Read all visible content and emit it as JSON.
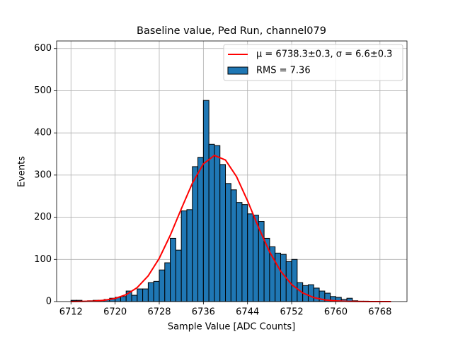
{
  "chart_data": {
    "type": "histogram",
    "title": "Baseline value, Ped Run, channel079",
    "xlabel": "Sample Value [ADC Counts]",
    "ylabel": "Events",
    "name": "RMS = 7.36",
    "color": "#1f77b4",
    "edgecolor": "#000000",
    "bins": [
      6712,
      6713,
      6714,
      6715,
      6716,
      6717,
      6718,
      6719,
      6720,
      6721,
      6722,
      6723,
      6724,
      6725,
      6726,
      6727,
      6728,
      6729,
      6730,
      6731,
      6732,
      6733,
      6734,
      6735,
      6736,
      6737,
      6738,
      6739,
      6740,
      6741,
      6742,
      6743,
      6744,
      6745,
      6746,
      6747,
      6748,
      6749,
      6750,
      6751,
      6752,
      6753,
      6754,
      6755,
      6756,
      6757,
      6758,
      6759,
      6760,
      6761,
      6762,
      6763,
      6764,
      6765,
      6766
    ],
    "counts": [
      3,
      3,
      1,
      2,
      3,
      3,
      5,
      8,
      10,
      12,
      25,
      15,
      30,
      30,
      45,
      48,
      75,
      92,
      150,
      122,
      215,
      218,
      320,
      342,
      477,
      373,
      370,
      325,
      280,
      265,
      235,
      230,
      208,
      205,
      190,
      150,
      130,
      115,
      112,
      95,
      100,
      45,
      38,
      40,
      32,
      25,
      20,
      12,
      10,
      5,
      8,
      2,
      1,
      1
    ],
    "fit": {
      "type": "line",
      "name": "μ = 6738.3±0.3, σ = 6.6±0.3",
      "color": "#ff0000",
      "x": [
        6712,
        6714,
        6716,
        6718,
        6720,
        6722,
        6724,
        6726,
        6728,
        6730,
        6732,
        6734,
        6736,
        6738,
        6740,
        6742,
        6744,
        6746,
        6748,
        6750,
        6752,
        6754,
        6756,
        6758,
        6760,
        6762,
        6764,
        6766,
        6768,
        6770
      ],
      "values": [
        0.1,
        0.4,
        1.1,
        3.1,
        7.4,
        16.4,
        33.2,
        61.1,
        102.6,
        157.3,
        220.0,
        280.7,
        326.6,
        346.6,
        335.7,
        296.5,
        239.0,
        175.7,
        117.8,
        72.1,
        40.3,
        20.5,
        9.5,
        4.0,
        1.6,
        0.6,
        0.2,
        0.1,
        0,
        0
      ]
    },
    "xlim": [
      6709.4,
      6772.9
    ],
    "ylim": [
      0,
      618
    ],
    "xticks": [
      6712,
      6720,
      6728,
      6736,
      6744,
      6752,
      6760,
      6768
    ],
    "yticks": [
      0,
      100,
      200,
      300,
      400,
      500,
      600
    ],
    "grid": true,
    "legend": "upper right"
  }
}
